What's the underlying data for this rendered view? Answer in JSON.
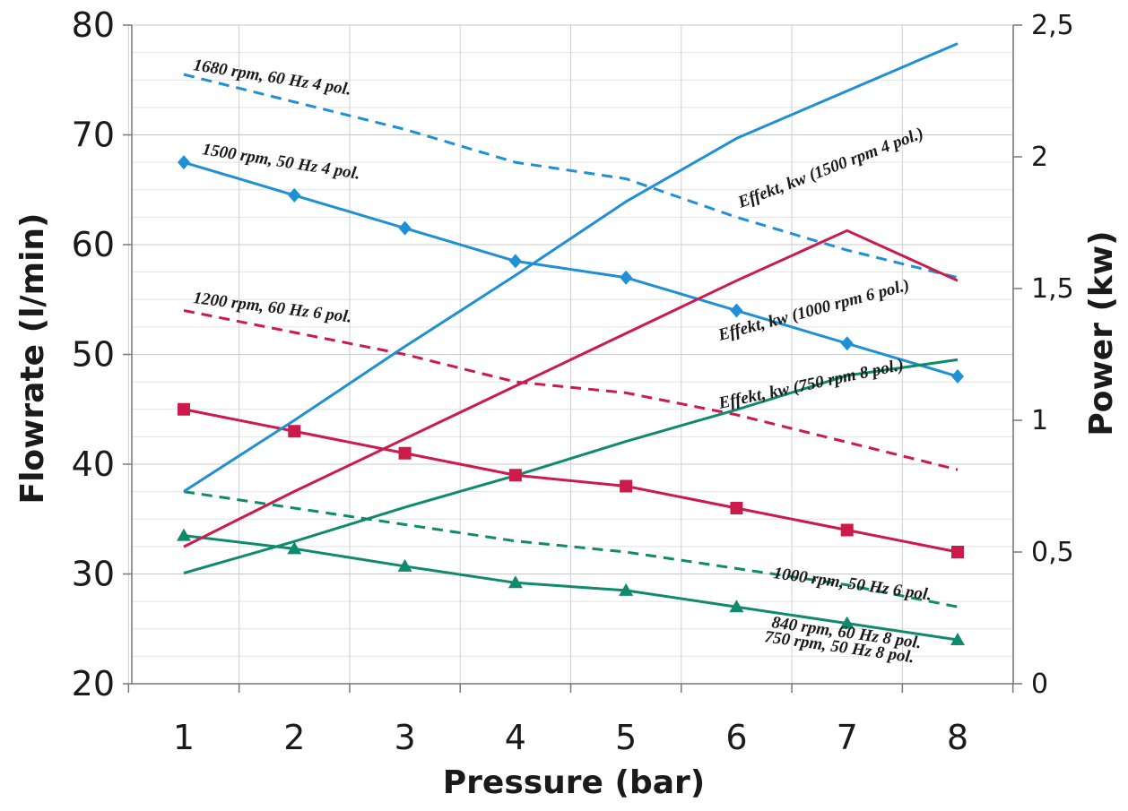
{
  "chart_data": {
    "type": "line",
    "xlabel": "Pressure (bar)",
    "ylabel": "Flowrate (l/min)",
    "y2label": "Power (kw)",
    "xlim": [
      1,
      8
    ],
    "ylim": [
      20,
      80
    ],
    "y2lim": [
      0,
      2.5
    ],
    "x_ticks": [
      "1",
      "2",
      "3",
      "4",
      "5",
      "6",
      "7",
      "8"
    ],
    "y_ticks": [
      "20",
      "30",
      "40",
      "50",
      "60",
      "70",
      "80"
    ],
    "y2_ticks": [
      "0",
      "0,5",
      "1",
      "1,5",
      "2",
      "2,5"
    ],
    "grid": true,
    "x": [
      1,
      2,
      3,
      4,
      5,
      6,
      7,
      8
    ],
    "series": [
      {
        "name": "1680 rpm, 60 Hz 4 pol.",
        "axis": "left",
        "color": "#1f8fd6",
        "dashed": true,
        "marker": "none",
        "values": [
          75.5,
          73,
          70.5,
          67.5,
          66,
          62.5,
          59.5,
          57
        ]
      },
      {
        "name": "1500 rpm, 50 Hz 4 pol.",
        "axis": "left",
        "color": "#1f8fd6",
        "dashed": false,
        "marker": "diamond",
        "values": [
          67.5,
          64.5,
          61.5,
          58.5,
          57,
          54,
          51,
          48
        ]
      },
      {
        "name": "1200 rpm, 60 Hz 6 pol.",
        "axis": "left",
        "color": "#cc1a4a",
        "dashed": true,
        "marker": "none",
        "values": [
          54,
          52,
          50,
          47.5,
          46.5,
          44.5,
          42,
          39.5
        ]
      },
      {
        "name": "1000 rpm, 50 Hz 6 pol.",
        "axis": "left",
        "color": "#cc1a4a",
        "dashed": false,
        "marker": "square",
        "values": [
          45,
          43,
          41,
          39,
          38,
          36,
          34,
          32
        ]
      },
      {
        "name": "840 rpm, 60 Hz 8 pol.",
        "axis": "left",
        "color": "#0f8a6c",
        "dashed": true,
        "marker": "none",
        "values": [
          37.5,
          36,
          34.5,
          33,
          32,
          30.5,
          29,
          27
        ]
      },
      {
        "name": "750 rpm, 50 Hz 8 pol.",
        "axis": "left",
        "color": "#0f8a6c",
        "dashed": false,
        "marker": "triangle",
        "values": [
          33.5,
          32.3,
          30.7,
          29.2,
          28.5,
          27,
          25.5,
          24
        ]
      },
      {
        "name": "Effekt, kw (1500 rpm 4 pol.)",
        "axis": "right",
        "color": "#1f8fd6",
        "dashed": false,
        "marker": "none",
        "values": [
          0.73,
          1.0,
          1.28,
          1.55,
          1.83,
          2.07,
          2.25,
          2.43
        ]
      },
      {
        "name": "Effekt, kw (1000 rpm 6 pol.)",
        "axis": "right",
        "color": "#cc1a4a",
        "dashed": false,
        "marker": "none",
        "values": [
          0.52,
          0.73,
          0.93,
          1.13,
          1.33,
          1.53,
          1.72,
          1.53
        ]
      },
      {
        "name": "Effekt, kw (750 rpm 8 pol.)",
        "axis": "right",
        "color": "#0f8a6c",
        "dashed": false,
        "marker": "none",
        "values": [
          0.42,
          0.54,
          0.67,
          0.79,
          0.92,
          1.04,
          1.17,
          1.23
        ]
      }
    ]
  }
}
